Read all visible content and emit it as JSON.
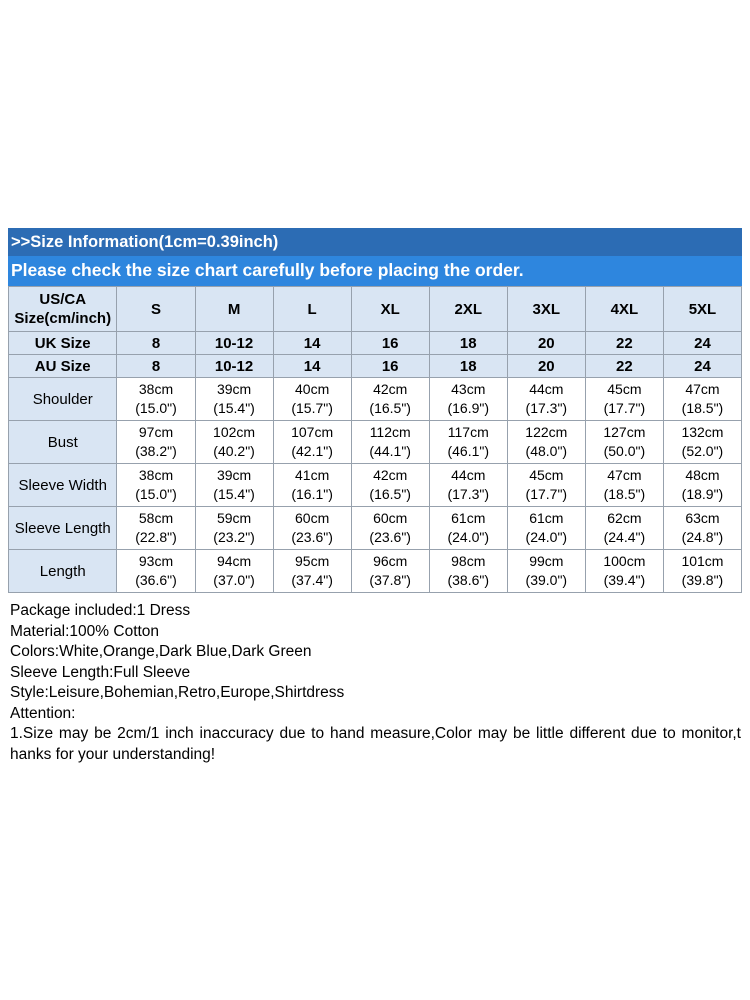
{
  "banners": {
    "size_info": ">>Size Information(1cm=0.39inch)",
    "check_notice": "Please check the size chart carefully before placing the order."
  },
  "size_chart": {
    "corner": {
      "line1": "US/CA",
      "line2": "Size(cm/inch)"
    },
    "sizes": [
      "S",
      "M",
      "L",
      "XL",
      "2XL",
      "3XL",
      "4XL",
      "5XL"
    ],
    "region_rows": [
      {
        "label": "UK Size",
        "values": [
          "8",
          "10-12",
          "14",
          "16",
          "18",
          "20",
          "22",
          "24"
        ]
      },
      {
        "label": "AU Size",
        "values": [
          "8",
          "10-12",
          "14",
          "16",
          "18",
          "20",
          "22",
          "24"
        ]
      }
    ],
    "measurement_rows": [
      {
        "label": "Shoulder",
        "cm": [
          "38cm",
          "39cm",
          "40cm",
          "42cm",
          "43cm",
          "44cm",
          "45cm",
          "47cm"
        ],
        "inch": [
          "(15.0\")",
          "(15.4\")",
          "(15.7\")",
          "(16.5\")",
          "(16.9\")",
          "(17.3\")",
          "(17.7\")",
          "(18.5\")"
        ]
      },
      {
        "label": "Bust",
        "cm": [
          "97cm",
          "102cm",
          "107cm",
          "112cm",
          "117cm",
          "122cm",
          "127cm",
          "132cm"
        ],
        "inch": [
          "(38.2\")",
          "(40.2\")",
          "(42.1\")",
          "(44.1\")",
          "(46.1\")",
          "(48.0\")",
          "(50.0\")",
          "(52.0\")"
        ]
      },
      {
        "label": "Sleeve Width",
        "cm": [
          "38cm",
          "39cm",
          "41cm",
          "42cm",
          "44cm",
          "45cm",
          "47cm",
          "48cm"
        ],
        "inch": [
          "(15.0\")",
          "(15.4\")",
          "(16.1\")",
          "(16.5\")",
          "(17.3\")",
          "(17.7\")",
          "(18.5\")",
          "(18.9\")"
        ]
      },
      {
        "label": "Sleeve Length",
        "cm": [
          "58cm",
          "59cm",
          "60cm",
          "60cm",
          "61cm",
          "61cm",
          "62cm",
          "63cm"
        ],
        "inch": [
          "(22.8\")",
          "(23.2\")",
          "(23.6\")",
          "(23.6\")",
          "(24.0\")",
          "(24.0\")",
          "(24.4\")",
          "(24.8\")"
        ]
      },
      {
        "label": "Length",
        "cm": [
          "93cm",
          "94cm",
          "95cm",
          "96cm",
          "98cm",
          "99cm",
          "100cm",
          "101cm"
        ],
        "inch": [
          "(36.6\")",
          "(37.0\")",
          "(37.4\")",
          "(37.8\")",
          "(38.6\")",
          "(39.0\")",
          "(39.4\")",
          "(39.8\")"
        ]
      }
    ]
  },
  "details": {
    "lines": [
      "Package included:1 Dress",
      "Material:100% Cotton",
      "Colors:White,Orange,Dark Blue,Dark Green",
      "Sleeve Length:Full Sleeve",
      "Style:Leisure,Bohemian,Retro,Europe,Shirtdress",
      "Attention:",
      "1.Size may be 2cm/1 inch inaccuracy due to hand measure,Color may be little different due to monitor,t",
      "hanks for your understanding!"
    ]
  },
  "colors": {
    "banner_dark_blue": "#2c6cb4",
    "banner_bright_blue": "#2e86de",
    "table_header_blue": "#d9e5f3"
  }
}
